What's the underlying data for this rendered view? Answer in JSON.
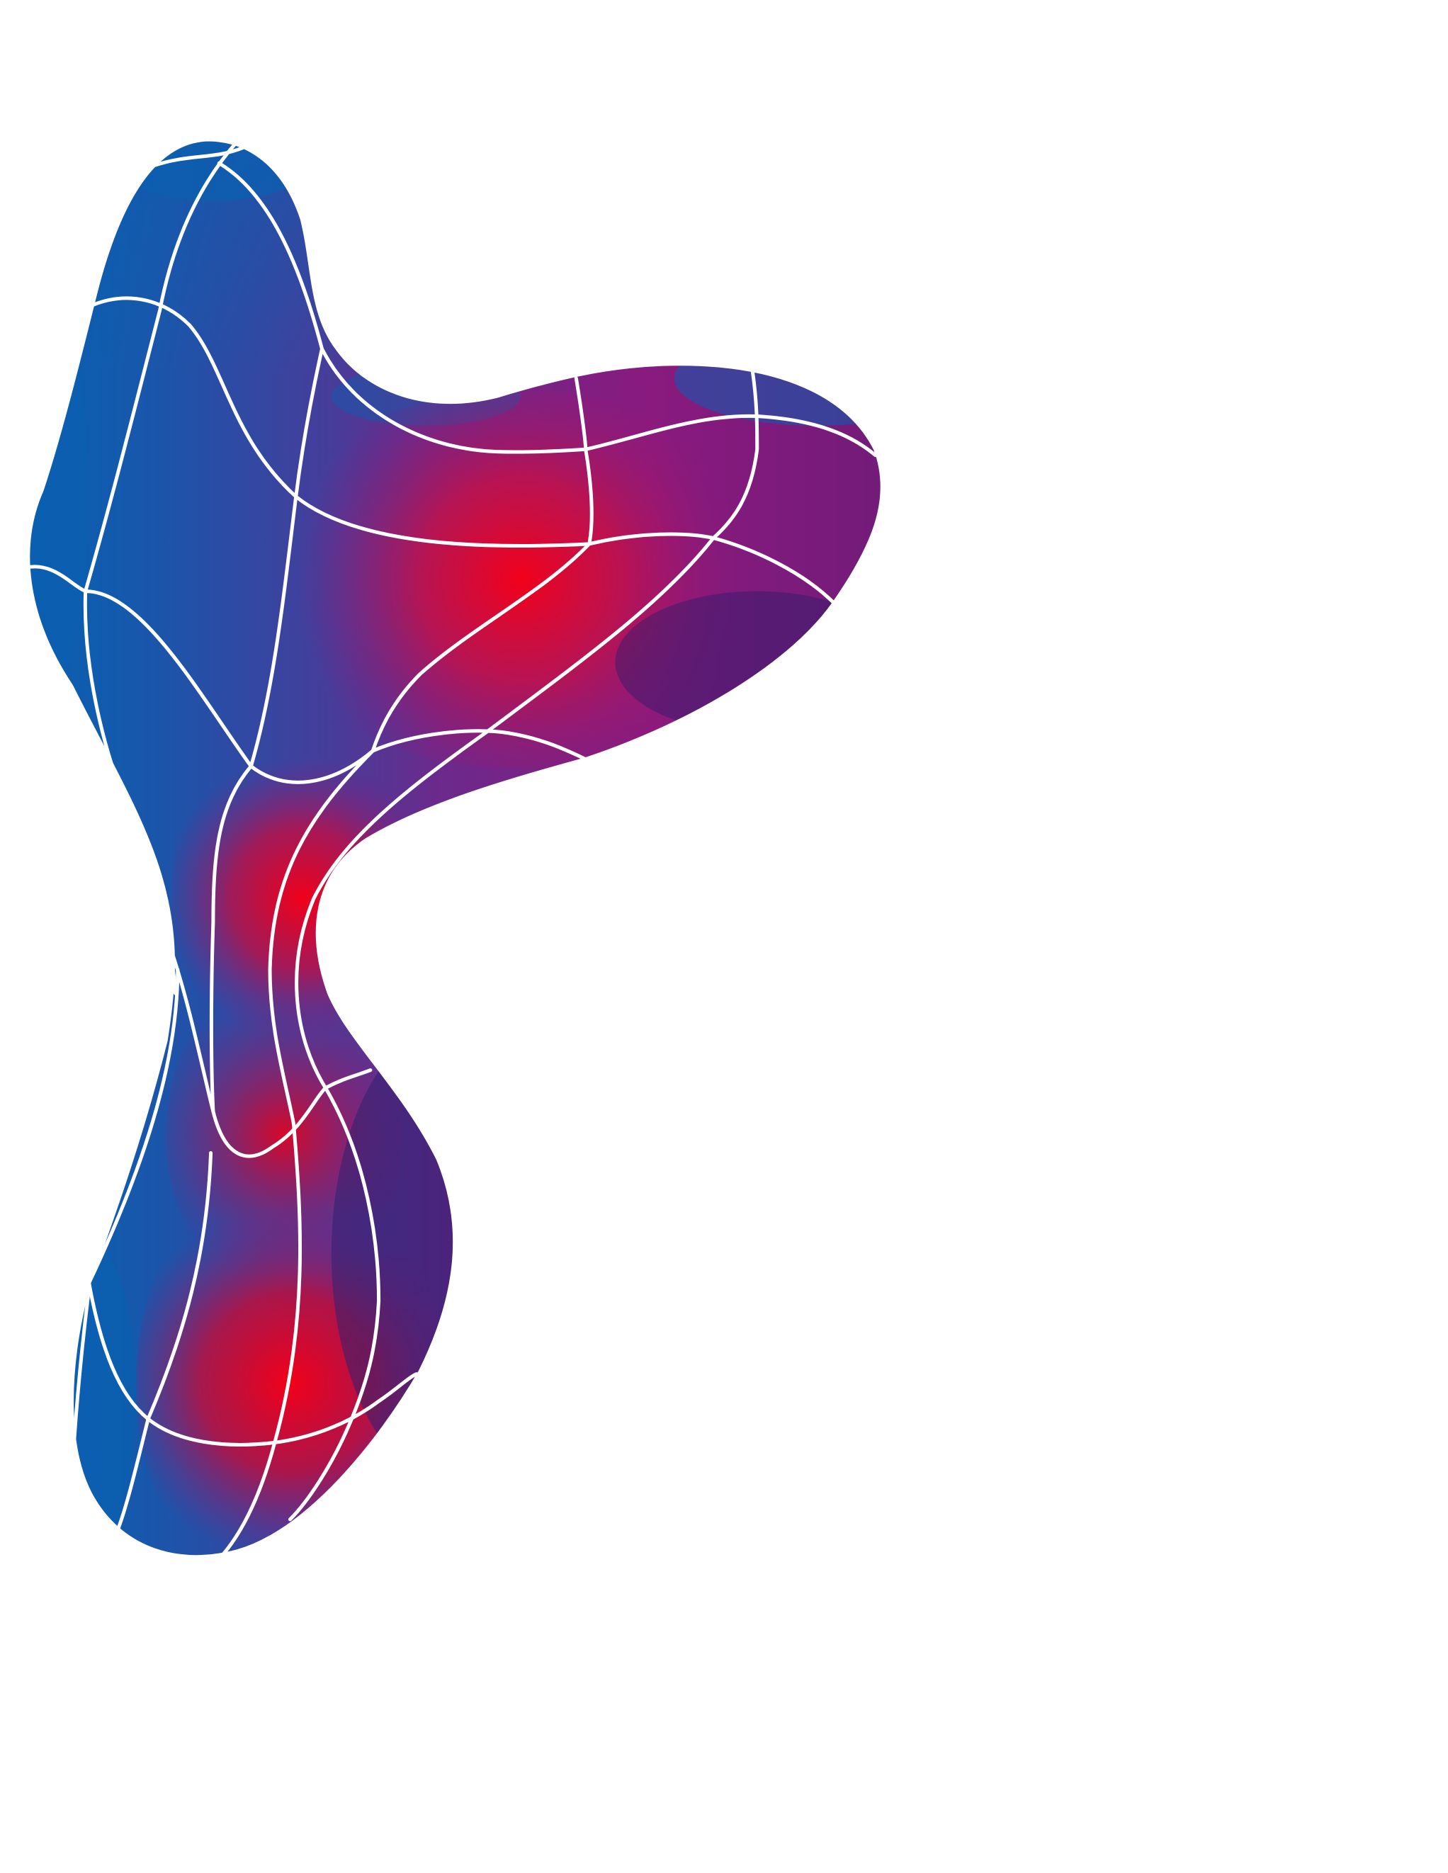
{
  "artwork": {
    "subject": "gradient-mesh-blob",
    "colors": {
      "background": "#ffffff",
      "edge_blue": "#0a5fb0",
      "mid_purple": "#8a1a7e",
      "core_red": "#e8001a",
      "deep_indigo": "#3a1f6e",
      "mesh_line": "#ffffff"
    }
  }
}
